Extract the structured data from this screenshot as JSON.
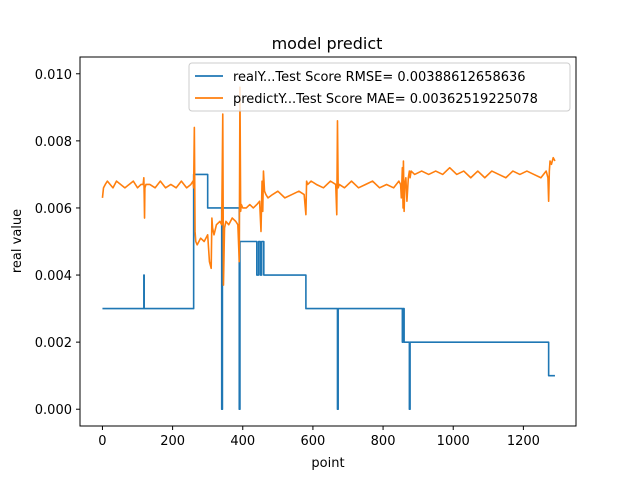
{
  "chart_data": {
    "type": "line",
    "title": "model predict",
    "xlabel": "point",
    "ylabel": "real value",
    "xlim": [
      -64,
      1350
    ],
    "ylim": [
      -0.0005,
      0.0105
    ],
    "xticks": [
      0,
      200,
      400,
      600,
      800,
      1000,
      1200
    ],
    "yticks": [
      0.0,
      0.002,
      0.004,
      0.006,
      0.008,
      0.01
    ],
    "ytick_labels": [
      "0.000",
      "0.002",
      "0.004",
      "0.006",
      "0.008",
      "0.010"
    ],
    "xtick_labels": [
      "0",
      "200",
      "400",
      "600",
      "800",
      "1000",
      "1200"
    ],
    "grid": false,
    "legend_position": "top-right",
    "series": [
      {
        "name": "realY...Test Score RMSE= 0.00388612658636",
        "color": "#1f77b4",
        "x": [
          0,
          118,
          118,
          119,
          119,
          120,
          120,
          260,
          260,
          300,
          300,
          340,
          340,
          342,
          342,
          345,
          345,
          390,
          390,
          392,
          392,
          394,
          394,
          440,
          440,
          445,
          445,
          450,
          450,
          454,
          454,
          460,
          460,
          580,
          580,
          670,
          670,
          672,
          672,
          855,
          855,
          857,
          857,
          860,
          860,
          875,
          875,
          877,
          877,
          880,
          880,
          1272,
          1272,
          1290
        ],
        "y": [
          0.003,
          0.003,
          0.004,
          0.004,
          0.003,
          0.003,
          0.003,
          0.003,
          0.007,
          0.007,
          0.006,
          0.006,
          0.0,
          0.0,
          0.006,
          0.006,
          0.006,
          0.006,
          0.0,
          0.0,
          0.005,
          0.005,
          0.005,
          0.005,
          0.004,
          0.004,
          0.005,
          0.005,
          0.004,
          0.004,
          0.005,
          0.005,
          0.004,
          0.004,
          0.003,
          0.003,
          0.0,
          0.0,
          0.003,
          0.003,
          0.002,
          0.002,
          0.003,
          0.003,
          0.002,
          0.002,
          0.0,
          0.0,
          0.002,
          0.002,
          0.002,
          0.002,
          0.001,
          0.001
        ]
      },
      {
        "name": "predictY...Test Score MAE= 0.00362519225078",
        "color": "#ff7f0e",
        "x": [
          0,
          3,
          8,
          14,
          22,
          30,
          40,
          52,
          64,
          76,
          88,
          100,
          110,
          116,
          118,
          119,
          120,
          121,
          124,
          135,
          150,
          165,
          180,
          195,
          210,
          225,
          240,
          252,
          258,
          260,
          262,
          264,
          266,
          270,
          280,
          290,
          300,
          305,
          310,
          312,
          314,
          318,
          325,
          335,
          340,
          343,
          345,
          348,
          352,
          360,
          370,
          380,
          386,
          390,
          392,
          394,
          396,
          400,
          410,
          420,
          430,
          440,
          448,
          452,
          455,
          457,
          459,
          462,
          466,
          472,
          485,
          500,
          520,
          540,
          560,
          575,
          580,
          582,
          585,
          595,
          610,
          630,
          650,
          665,
          668,
          670,
          672,
          675,
          690,
          710,
          730,
          750,
          770,
          790,
          810,
          830,
          845,
          850,
          852,
          855,
          857,
          858,
          860,
          862,
          865,
          868,
          872,
          875,
          877,
          880,
          890,
          910,
          930,
          950,
          970,
          990,
          1010,
          1030,
          1050,
          1070,
          1090,
          1110,
          1130,
          1150,
          1170,
          1190,
          1210,
          1230,
          1250,
          1265,
          1270,
          1272,
          1274,
          1276,
          1280,
          1285,
          1290
        ],
        "y": [
          0.0063,
          0.0066,
          0.0067,
          0.0068,
          0.0067,
          0.0066,
          0.0068,
          0.0067,
          0.0066,
          0.0067,
          0.0068,
          0.0066,
          0.0067,
          0.0067,
          0.0069,
          0.0064,
          0.0057,
          0.0066,
          0.0067,
          0.0067,
          0.0066,
          0.0068,
          0.0066,
          0.0067,
          0.0066,
          0.0068,
          0.0066,
          0.0067,
          0.0068,
          0.0066,
          0.0084,
          0.0053,
          0.005,
          0.0049,
          0.0051,
          0.005,
          0.0052,
          0.0044,
          0.0042,
          0.0057,
          0.0054,
          0.0052,
          0.0055,
          0.0056,
          0.0055,
          0.0088,
          0.0037,
          0.0054,
          0.0056,
          0.0055,
          0.0057,
          0.0056,
          0.0055,
          0.0044,
          0.0096,
          0.0059,
          0.0061,
          0.006,
          0.006,
          0.0061,
          0.006,
          0.0061,
          0.0062,
          0.0053,
          0.0068,
          0.0059,
          0.0071,
          0.0065,
          0.0064,
          0.0063,
          0.0064,
          0.0065,
          0.0063,
          0.0064,
          0.0065,
          0.0064,
          0.0058,
          0.0068,
          0.0067,
          0.0068,
          0.0067,
          0.0066,
          0.0068,
          0.0067,
          0.0058,
          0.0086,
          0.0066,
          0.0067,
          0.0066,
          0.0068,
          0.0066,
          0.0067,
          0.0068,
          0.0066,
          0.0067,
          0.0066,
          0.0068,
          0.0067,
          0.0063,
          0.0072,
          0.006,
          0.0074,
          0.0059,
          0.0067,
          0.0069,
          0.0062,
          0.0069,
          0.0071,
          0.0069,
          0.0071,
          0.007,
          0.0071,
          0.007,
          0.0071,
          0.007,
          0.0072,
          0.007,
          0.0071,
          0.0069,
          0.0071,
          0.0069,
          0.0071,
          0.007,
          0.0069,
          0.0071,
          0.007,
          0.0071,
          0.007,
          0.0069,
          0.0071,
          0.0069,
          0.0062,
          0.0071,
          0.0074,
          0.0073,
          0.0075,
          0.0074
        ]
      }
    ]
  }
}
